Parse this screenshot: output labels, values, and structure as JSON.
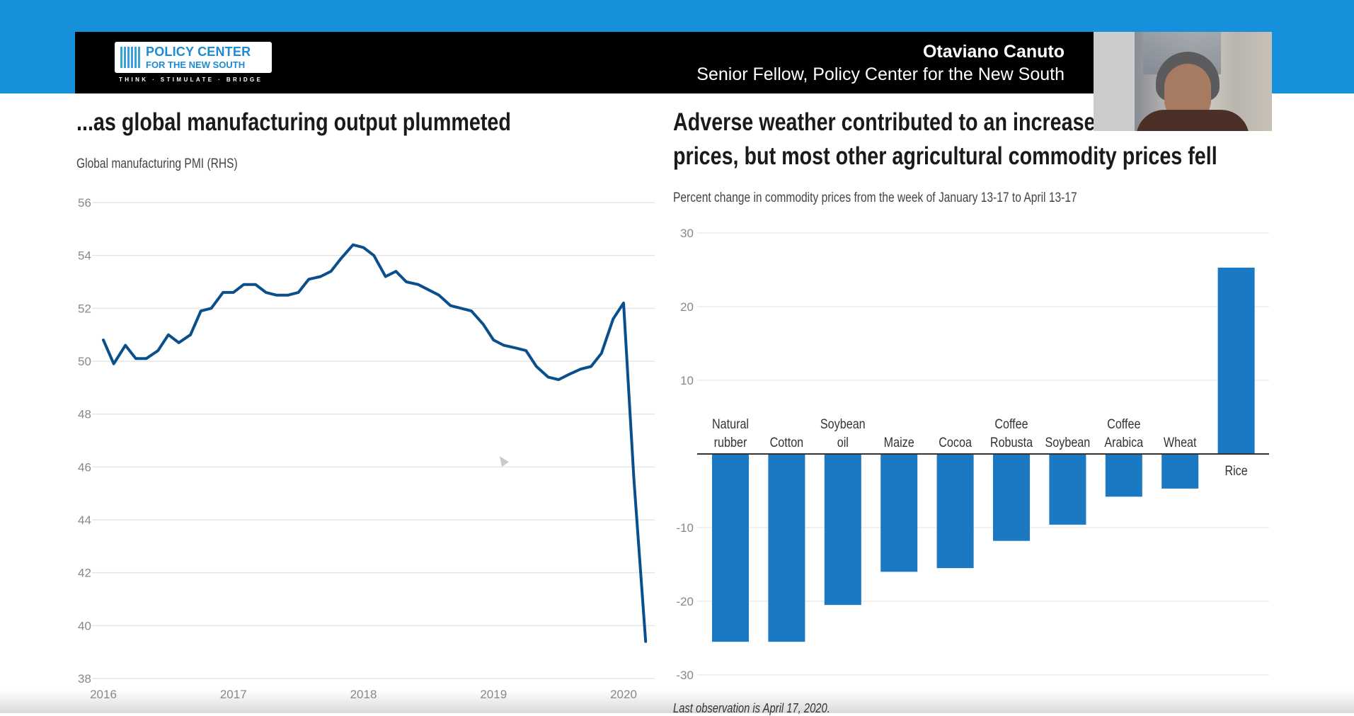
{
  "header": {
    "logo_line1": "POLICY CENTER",
    "logo_line2": "FOR THE NEW SOUTH",
    "logo_tagline": "THINK · STIMULATE · BRIDGE",
    "speaker_name": "Otaviano Canuto",
    "speaker_role": "Senior Fellow, Policy Center for the New South"
  },
  "left_chart_title": "...as global manufacturing output plummeted",
  "left_chart_subtitle": "Global manufacturing PMI (RHS)",
  "right_chart_title_line1": "Adverse weather contributed to an increase in rice",
  "right_chart_title_line2": "prices, but most other agricultural commodity prices fell",
  "right_chart_subtitle": "Percent change in commodity prices from the week of January 13-17 to April 13-17",
  "footnote": "Last observation is April 17, 2020.",
  "colors": {
    "top_bar": "#1690db",
    "header_bg": "#000000",
    "line": "#0a4f8c",
    "bar": "#1b78c2"
  },
  "chart_data": [
    {
      "type": "line",
      "title": "...as global manufacturing output plummeted",
      "ylabel": "Global manufacturing PMI (RHS)",
      "ylim": [
        38,
        56
      ],
      "yticks": [
        38,
        40,
        42,
        44,
        46,
        48,
        50,
        52,
        54,
        56
      ],
      "xticks": [
        "2016",
        "2017",
        "2018",
        "2019",
        "2020"
      ],
      "grid": true,
      "x": [
        2016.0,
        2016.08,
        2016.17,
        2016.25,
        2016.33,
        2016.42,
        2016.5,
        2016.58,
        2016.67,
        2016.75,
        2016.83,
        2016.92,
        2017.0,
        2017.08,
        2017.17,
        2017.25,
        2017.33,
        2017.42,
        2017.5,
        2017.58,
        2017.67,
        2017.75,
        2017.83,
        2017.92,
        2018.0,
        2018.08,
        2018.17,
        2018.25,
        2018.33,
        2018.42,
        2018.5,
        2018.58,
        2018.67,
        2018.75,
        2018.83,
        2018.92,
        2019.0,
        2019.08,
        2019.17,
        2019.25,
        2019.33,
        2019.42,
        2019.5,
        2019.58,
        2019.67,
        2019.75,
        2019.83,
        2019.92,
        2020.0,
        2020.08,
        2020.17
      ],
      "series": [
        {
          "values": [
            50.8,
            49.9,
            50.6,
            50.1,
            50.1,
            50.4,
            51.0,
            50.7,
            51.0,
            51.9,
            52.0,
            52.6,
            52.6,
            52.9,
            52.9,
            52.6,
            52.5,
            52.5,
            52.6,
            53.1,
            53.2,
            53.4,
            53.9,
            54.4,
            54.3,
            54.0,
            53.2,
            53.4,
            53.0,
            52.9,
            52.7,
            52.5,
            52.1,
            52.0,
            51.9,
            51.4,
            50.8,
            50.6,
            50.5,
            50.4,
            49.8,
            49.4,
            49.3,
            49.5,
            49.7,
            49.8,
            50.3,
            51.6,
            52.2,
            45.5,
            39.4
          ]
        }
      ]
    },
    {
      "type": "bar",
      "title": "Adverse weather contributed to an increase in rice prices, but most other agricultural commodity prices fell",
      "ylabel": "Percent change in commodity prices from the week of January 13-17 to April 13-17",
      "ylim": [
        -30,
        30
      ],
      "yticks": [
        -30,
        -20,
        -10,
        10,
        20,
        30
      ],
      "grid": true,
      "categories": [
        [
          "Natural",
          "rubber"
        ],
        [
          "Cotton"
        ],
        [
          "Soybean",
          "oil"
        ],
        [
          "Maize"
        ],
        [
          "Cocoa"
        ],
        [
          "Coffee",
          "Robusta"
        ],
        [
          "Soybean"
        ],
        [
          "Coffee",
          "Arabica"
        ],
        [
          "Wheat"
        ],
        [
          "Rice"
        ]
      ],
      "values": [
        -25.5,
        -25.5,
        -20.5,
        -16,
        -15.5,
        -11.8,
        -9.6,
        -5.8,
        -4.7,
        25.3
      ]
    }
  ]
}
